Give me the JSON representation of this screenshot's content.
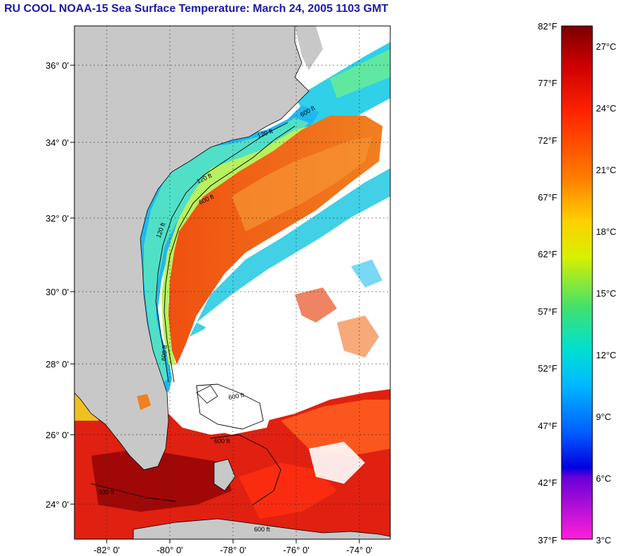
{
  "title": "RU COOL  NOAA-15  Sea Surface Temperature:  March 24, 2005 1103 GMT",
  "map": {
    "lat_ticks": [
      "36° 0'",
      "34° 0'",
      "32° 0'",
      "30° 0'",
      "28° 0'",
      "26° 0'",
      "24° 0'"
    ],
    "lon_ticks": [
      "-82° 0'",
      "-80° 0'",
      "-78° 0'",
      "-76° 0'",
      "-74° 0'"
    ],
    "contour_labels": [
      "120 ft",
      "600 ft",
      "120 ft",
      "600 ft",
      "120 ft",
      "600 ft",
      "600 ft",
      "600 ft",
      "600 ft",
      "600 ft"
    ],
    "colors": {
      "land": "#c8c8c8",
      "cloud": "#ffffff",
      "gulf_stream": "#e8481a",
      "warm_core": "#f07820",
      "coastal": "#20b8f0"
    }
  },
  "colorbar": {
    "f_labels": [
      "82°F",
      "77°F",
      "72°F",
      "67°F",
      "62°F",
      "57°F",
      "52°F",
      "47°F",
      "42°F",
      "37°F"
    ],
    "c_labels": [
      "27°C",
      "24°C",
      "21°C",
      "18°C",
      "15°C",
      "12°C",
      "9°C",
      "6°C",
      "3°C"
    ],
    "gradient_stops": [
      "#7a0000",
      "#d60000",
      "#ff3000",
      "#ff8000",
      "#ffd000",
      "#c8f000",
      "#40e060",
      "#00e0c0",
      "#00c8ff",
      "#0060ff",
      "#0000e0",
      "#6a00d0",
      "#ff20d0"
    ]
  }
}
